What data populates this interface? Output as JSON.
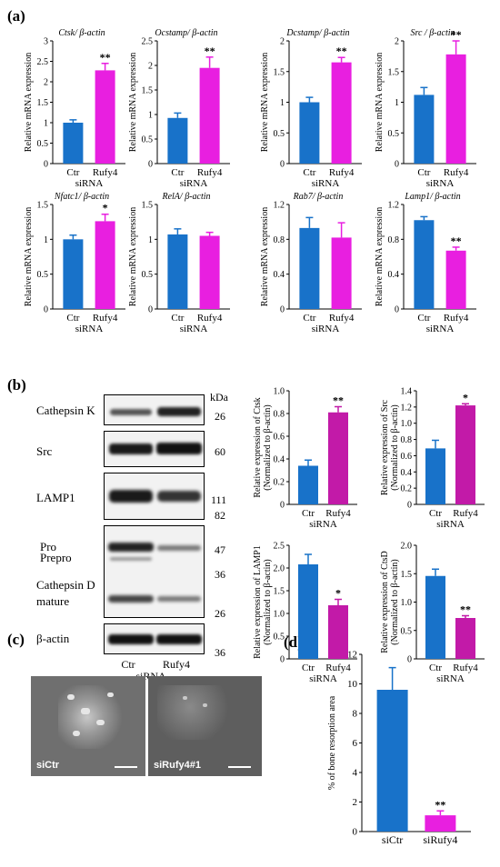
{
  "panels": {
    "a": "(a)",
    "b": "(b)",
    "c": "(c)",
    "d": "(d)"
  },
  "colors": {
    "ctr": "#1872c9",
    "rufy4": "#e81fe0",
    "rufy4_b": "#c21aa8"
  },
  "chart_data": [
    {
      "type": "bar",
      "panel": "a",
      "title": "Ctsk/ β-actin",
      "categories": [
        "Ctr",
        "Rufy4"
      ],
      "values": [
        1.0,
        2.28
      ],
      "errors": [
        0.07,
        0.17
      ],
      "sig": [
        "",
        "**"
      ],
      "ylim": [
        0,
        3
      ],
      "yticks": [
        "0",
        "0.5",
        "1",
        "1.5",
        "2",
        "2.5",
        "3"
      ],
      "ylabel": "Relative mRNA expression",
      "xlabel": "siRNA"
    },
    {
      "type": "bar",
      "panel": "a",
      "title": "Ocstamp/ β-actin",
      "categories": [
        "Ctr",
        "Rufy4"
      ],
      "values": [
        0.93,
        1.95
      ],
      "errors": [
        0.1,
        0.22
      ],
      "sig": [
        "",
        "**"
      ],
      "ylim": [
        0,
        2.5
      ],
      "yticks": [
        "0",
        "0.5",
        "1",
        "1.5",
        "2",
        "2.5"
      ],
      "ylabel": "Relative mRNA expression",
      "xlabel": "siRNA"
    },
    {
      "type": "bar",
      "panel": "a",
      "title": "Dcstamp/ β-actin",
      "categories": [
        "Ctr",
        "Rufy4"
      ],
      "values": [
        1.0,
        1.65
      ],
      "errors": [
        0.08,
        0.08
      ],
      "sig": [
        "",
        "**"
      ],
      "ylim": [
        0,
        2
      ],
      "yticks": [
        "0",
        "0.5",
        "1",
        "1.5",
        "2"
      ],
      "ylabel": "Relative mRNA expression",
      "xlabel": "siRNA"
    },
    {
      "type": "bar",
      "panel": "a",
      "title": "Src / β-actin",
      "categories": [
        "Ctr",
        "Rufy4"
      ],
      "values": [
        1.12,
        1.78
      ],
      "errors": [
        0.12,
        0.22
      ],
      "sig": [
        "",
        "**"
      ],
      "ylim": [
        0,
        2
      ],
      "yticks": [
        "0",
        "0.5",
        "1",
        "1.5",
        "2"
      ],
      "ylabel": "Relative mRNA expression",
      "xlabel": "siRNA"
    },
    {
      "type": "bar",
      "panel": "a",
      "title": "Nfatc1/ β-actin",
      "categories": [
        "Ctr",
        "Rufy4"
      ],
      "values": [
        1.0,
        1.26
      ],
      "errors": [
        0.06,
        0.1
      ],
      "sig": [
        "",
        "*"
      ],
      "ylim": [
        0,
        1.5
      ],
      "yticks": [
        "0",
        "0.5",
        "1",
        "1.5"
      ],
      "ylabel": "Relative mRNA expression",
      "xlabel": "siRNA"
    },
    {
      "type": "bar",
      "panel": "a",
      "title": "RelA/ β-actin",
      "categories": [
        "Ctr",
        "Rufy4"
      ],
      "values": [
        1.07,
        1.05
      ],
      "errors": [
        0.08,
        0.05
      ],
      "sig": [
        "",
        ""
      ],
      "ylim": [
        0,
        1.5
      ],
      "yticks": [
        "0",
        "0.5",
        "1",
        "1.5"
      ],
      "ylabel": "Relative mRNA expression",
      "xlabel": "siRNA"
    },
    {
      "type": "bar",
      "panel": "a",
      "title": "Rab7/ β-actin",
      "categories": [
        "Ctr",
        "Rufy4"
      ],
      "values": [
        0.93,
        0.82
      ],
      "errors": [
        0.12,
        0.17
      ],
      "sig": [
        "",
        ""
      ],
      "ylim": [
        0,
        1.2
      ],
      "yticks": [
        "0",
        "0.4",
        "0.8",
        "1.2"
      ],
      "ylabel": "Relative mRNA expression",
      "xlabel": "siRNA"
    },
    {
      "type": "bar",
      "panel": "a",
      "title": "Lamp1/ β-actin",
      "categories": [
        "Ctr",
        "Rufy4"
      ],
      "values": [
        1.02,
        0.67
      ],
      "errors": [
        0.04,
        0.04
      ],
      "sig": [
        "",
        "**"
      ],
      "ylim": [
        0,
        1.2
      ],
      "yticks": [
        "0",
        "0.4",
        "0.8",
        "1.2"
      ],
      "ylabel": "Relative mRNA expression",
      "xlabel": "siRNA"
    },
    {
      "type": "bar",
      "panel": "b",
      "title": "",
      "categories": [
        "Ctr",
        "Rufy4"
      ],
      "values": [
        0.34,
        0.81
      ],
      "errors": [
        0.05,
        0.05
      ],
      "sig": [
        "",
        "**"
      ],
      "ylim": [
        0,
        1.0
      ],
      "yticks": [
        "0",
        "0.2",
        "0.4",
        "0.6",
        "0.8",
        "1.0"
      ],
      "ylabel": "Relative expression of Ctsk",
      "ylabel2": "(Normalized to β-actin)",
      "xlabel": "siRNA"
    },
    {
      "type": "bar",
      "panel": "b",
      "title": "",
      "categories": [
        "Ctr",
        "Rufy4"
      ],
      "values": [
        0.69,
        1.22
      ],
      "errors": [
        0.1,
        0.02
      ],
      "sig": [
        "",
        "*"
      ],
      "ylim": [
        0,
        1.4
      ],
      "yticks": [
        "0",
        "0.2",
        "0.4",
        "0.6",
        "0.8",
        "1.0",
        "1.2",
        "1.4"
      ],
      "ylabel": "Relative expression of Src",
      "ylabel2": "(Normalized to β-actin)",
      "xlabel": "siRNA"
    },
    {
      "type": "bar",
      "panel": "b",
      "title": "",
      "categories": [
        "Ctr",
        "Rufy4"
      ],
      "values": [
        2.08,
        1.18
      ],
      "errors": [
        0.22,
        0.13
      ],
      "sig": [
        "",
        "*"
      ],
      "ylim": [
        0,
        2.5
      ],
      "yticks": [
        "0",
        "0.5",
        "1.0",
        "1.5",
        "2.0",
        "2.5"
      ],
      "ylabel": "Relative expression of LAMP1",
      "ylabel2": "(Normalized to β-actin)",
      "xlabel": "siRNA"
    },
    {
      "type": "bar",
      "panel": "b",
      "title": "",
      "categories": [
        "Ctr",
        "Rufy4"
      ],
      "values": [
        1.46,
        0.72
      ],
      "errors": [
        0.12,
        0.04
      ],
      "sig": [
        "",
        "**"
      ],
      "ylim": [
        0,
        2.0
      ],
      "yticks": [
        "0",
        "0.5",
        "1.0",
        "1.5",
        "2.0"
      ],
      "ylabel": "Relative expression of CtsD",
      "ylabel2": "(Normalized to β-actin)",
      "xlabel": "siRNA"
    },
    {
      "type": "bar",
      "panel": "d",
      "title": "",
      "categories": [
        "siCtr",
        "siRufy4"
      ],
      "values": [
        9.6,
        1.1
      ],
      "errors": [
        1.5,
        0.3
      ],
      "sig": [
        "",
        "**"
      ],
      "ylim": [
        0,
        12
      ],
      "yticks": [
        "0",
        "2",
        "4",
        "6",
        "8",
        "10",
        "12"
      ],
      "ylabel": "% of bone resorption area",
      "xlabel": ""
    }
  ],
  "blot": {
    "kda_unit": "kDa",
    "rows": [
      {
        "label": "Cathepsin K",
        "kda": [
          "26"
        ]
      },
      {
        "label": "Src",
        "kda": [
          "60"
        ]
      },
      {
        "label": "LAMP1",
        "kda": [
          "111",
          "82"
        ]
      },
      {
        "label": "Pro",
        "label2": "Prepro",
        "label3": "Cathepsin D",
        "label4": "mature",
        "kda": [
          "47",
          "36",
          "26"
        ]
      },
      {
        "label": "β-actin",
        "kda": [
          "36"
        ]
      }
    ],
    "lanes": [
      "Ctr",
      "Rufy4"
    ],
    "xlabel": "siRNA"
  },
  "photos": [
    {
      "label": "siCtr"
    },
    {
      "label": "siRufy4#1"
    }
  ]
}
